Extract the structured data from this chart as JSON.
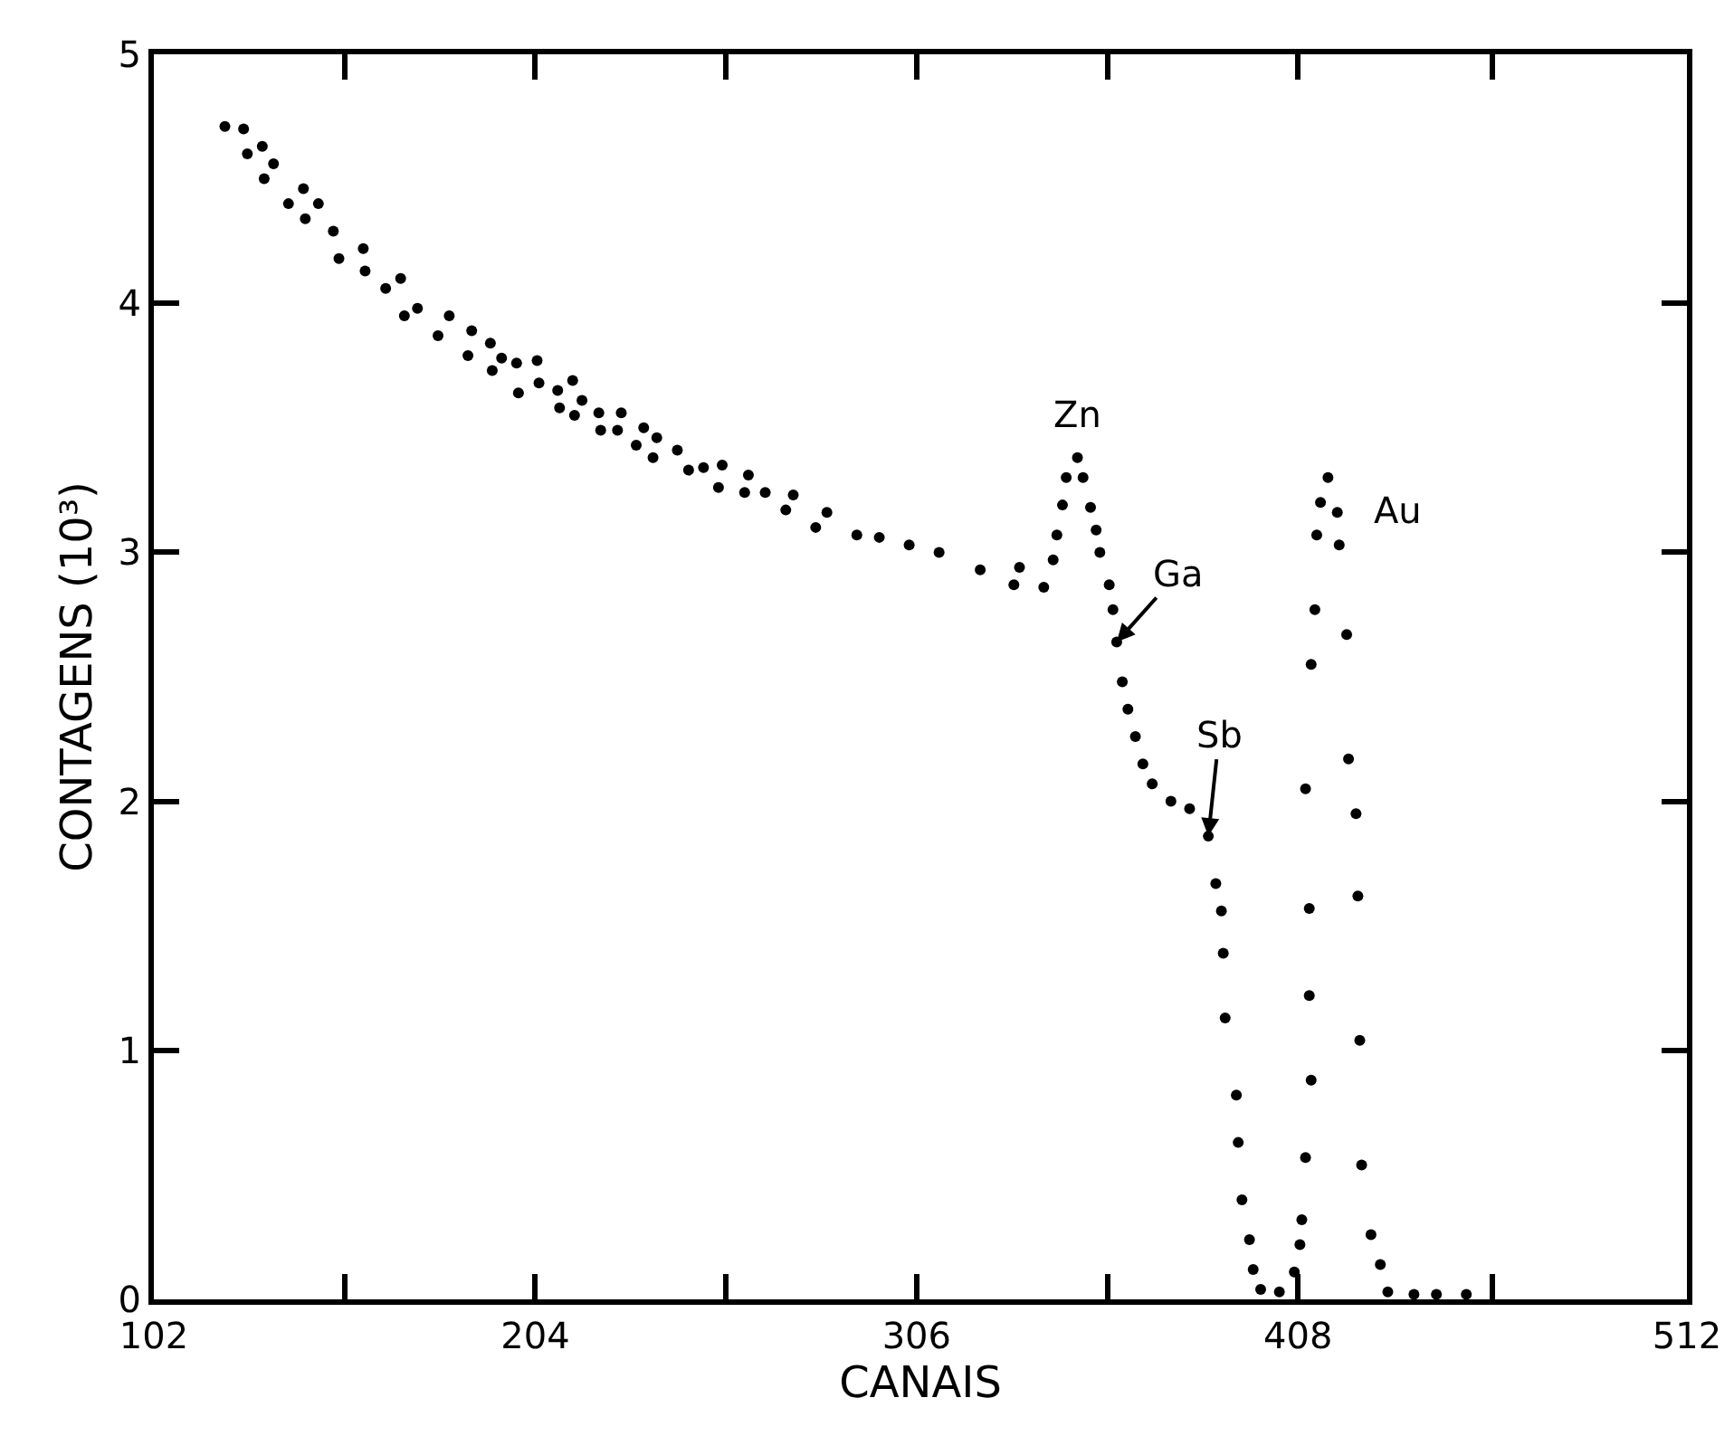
{
  "chart_data": {
    "type": "scatter",
    "xlabel": "CANAIS",
    "ylabel": "CONTAGENS (10³)",
    "xlim": [
      102,
      512
    ],
    "ylim": [
      0,
      5
    ],
    "xticks": [
      102,
      {
        "value": 153,
        "label": null
      },
      204,
      {
        "value": 255,
        "label": null
      },
      306,
      {
        "value": 357,
        "label": null
      },
      408,
      {
        "value": 460,
        "label": null
      },
      512
    ],
    "yticks": [
      0,
      1,
      2,
      3,
      4,
      5
    ],
    "grid": false,
    "marker": "circle",
    "series": [
      {
        "color": "#000000",
        "x": [
          121,
          126,
          127,
          131,
          131.5,
          134,
          138,
          142,
          142.5,
          146,
          150,
          151.5,
          158,
          158.5,
          164,
          168,
          169,
          172.5,
          178,
          181,
          186,
          187,
          192,
          192.5,
          195,
          199,
          199.5,
          204.5,
          205,
          210,
          210.5,
          214,
          214.5,
          216.5,
          221,
          221.5,
          226,
          227,
          231,
          233,
          235.5,
          236.5,
          242,
          245,
          249,
          253,
          254,
          260,
          261,
          265.5,
          271,
          273,
          279,
          282,
          290,
          296,
          304,
          312,
          323,
          332,
          333.5,
          340,
          342.5,
          343.5,
          345,
          346,
          349,
          350.5,
          352.5,
          354,
          355,
          357.5,
          358.5,
          359.5,
          361,
          362.5,
          364.5,
          366.5,
          369,
          374,
          379,
          384,
          386,
          387.5,
          388,
          388.5,
          391.5,
          392,
          393,
          395,
          396,
          398,
          403,
          407,
          408.5,
          409,
          410,
          410,
          411,
          411,
          411.5,
          411.5,
          412.5,
          413,
          414,
          416,
          418.5,
          419,
          421,
          421.5,
          423.5,
          424,
          424.5,
          425,
          427.5,
          430,
          432,
          439,
          445,
          453
        ],
        "values": [
          4.71,
          4.7,
          4.6,
          4.63,
          4.5,
          4.56,
          4.4,
          4.46,
          4.34,
          4.4,
          4.29,
          4.18,
          4.22,
          4.13,
          4.06,
          4.1,
          3.95,
          3.98,
          3.87,
          3.95,
          3.79,
          3.89,
          3.84,
          3.73,
          3.78,
          3.76,
          3.64,
          3.77,
          3.68,
          3.65,
          3.58,
          3.69,
          3.55,
          3.61,
          3.56,
          3.49,
          3.49,
          3.56,
          3.43,
          3.5,
          3.38,
          3.46,
          3.41,
          3.33,
          3.34,
          3.26,
          3.35,
          3.24,
          3.31,
          3.24,
          3.17,
          3.23,
          3.1,
          3.16,
          3.07,
          3.06,
          3.03,
          3.0,
          2.93,
          2.87,
          2.94,
          2.86,
          2.97,
          3.07,
          3.19,
          3.3,
          3.38,
          3.3,
          3.18,
          3.09,
          3.0,
          2.87,
          2.77,
          2.64,
          2.48,
          2.37,
          2.26,
          2.15,
          2.07,
          2.0,
          1.97,
          1.86,
          1.67,
          1.56,
          1.39,
          1.13,
          0.82,
          0.63,
          0.4,
          0.24,
          0.12,
          0.04,
          0.03,
          0.11,
          0.22,
          0.32,
          0.57,
          2.05,
          1.22,
          1.57,
          0.88,
          2.55,
          2.77,
          3.07,
          3.2,
          3.3,
          3.16,
          3.03,
          2.67,
          2.17,
          1.95,
          1.62,
          1.04,
          0.54,
          0.26,
          0.14,
          0.03,
          0.02,
          0.02,
          0.02
        ]
      }
    ],
    "annotations": [
      {
        "text": "Zn",
        "x": 349,
        "y": 3.38
      },
      {
        "text": "Ga",
        "x": 359.5,
        "y": 2.64
      },
      {
        "text": "Sb",
        "x": 384,
        "y": 1.86
      },
      {
        "text": "Au",
        "x": 416,
        "y": 3.3
      }
    ]
  }
}
